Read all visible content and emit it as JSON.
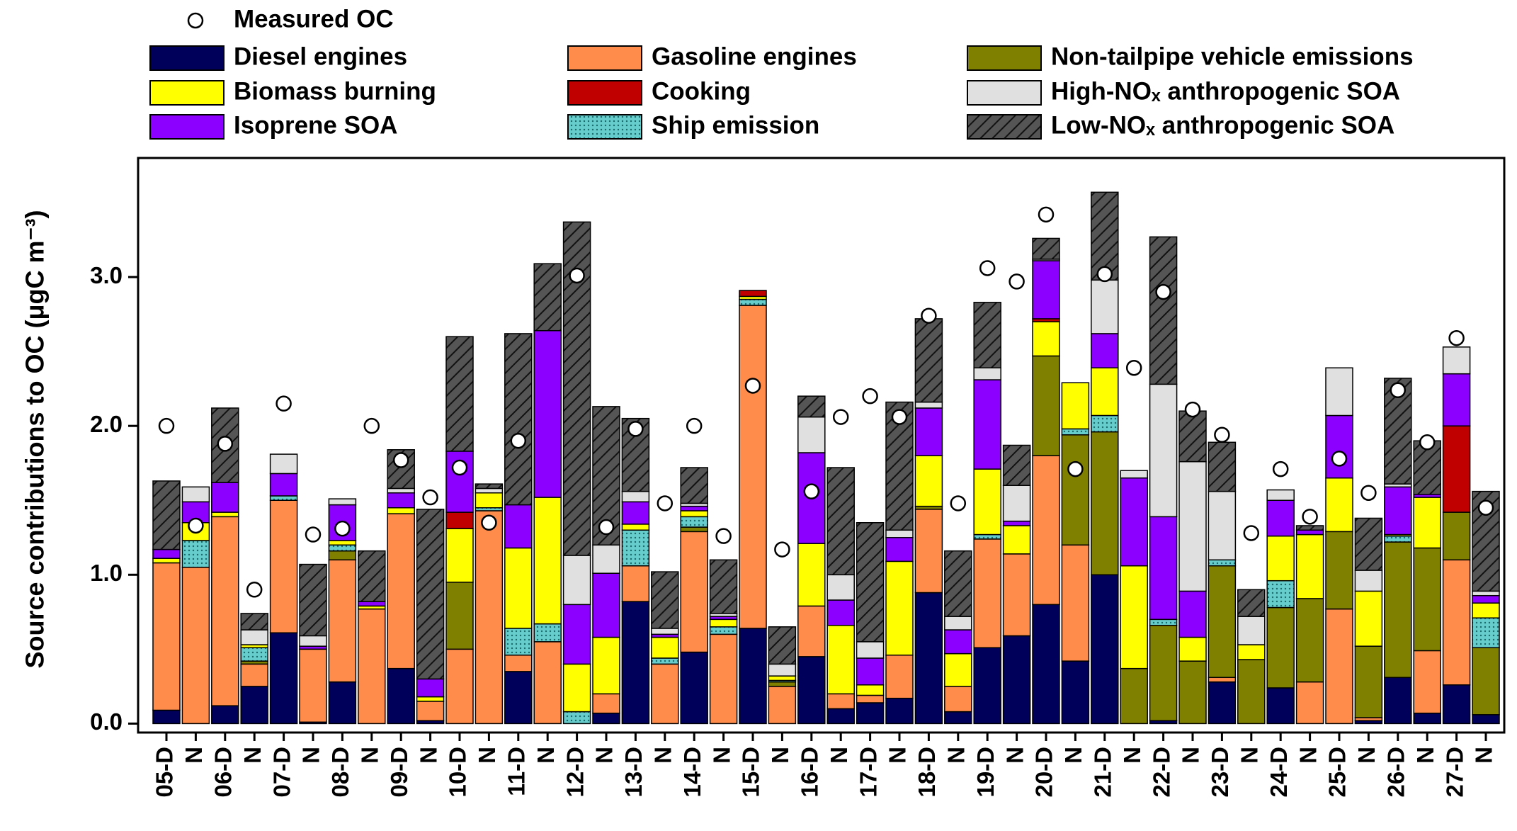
{
  "chart_data": {
    "type": "bar",
    "stacked": true,
    "ylabel": "Source contributions to OC (μgC m⁻³)",
    "ylim": [
      -0.06,
      3.8
    ],
    "yticks": [
      {
        "value": 0,
        "label": "0.0"
      },
      {
        "value": 1,
        "label": "1.0"
      },
      {
        "value": 2,
        "label": "2.0"
      },
      {
        "value": 3,
        "label": "3.0"
      }
    ],
    "categories": [
      "05-D",
      "N",
      "06-D",
      "N",
      "07-D",
      "N",
      "08-D",
      "N",
      "09-D",
      "N",
      "10-D",
      "N",
      "11-D",
      "N",
      "12-D",
      "N",
      "13-D",
      "N",
      "14-D",
      "N",
      "15-D",
      "N",
      "16-D",
      "N",
      "17-D",
      "N",
      "18-D",
      "N",
      "19-D",
      "N",
      "20-D",
      "N",
      "21-D",
      "N",
      "22-D",
      "N",
      "23-D",
      "N",
      "24-D",
      "N",
      "25-D",
      "N",
      "26-D",
      "N",
      "27-D",
      "N"
    ],
    "series": [
      {
        "name": "Diesel engines",
        "color": "#00005a",
        "values": [
          0.09,
          0,
          0.12,
          0.25,
          0.61,
          0.01,
          0.28,
          0,
          0.37,
          0.02,
          0,
          0,
          0.35,
          0,
          0,
          0.07,
          0.82,
          0,
          0.48,
          0,
          0.64,
          0,
          0.45,
          0.1,
          0.14,
          0.17,
          0.88,
          0.08,
          0.51,
          0.59,
          0.8,
          0.42,
          1.0,
          0,
          0.02,
          0,
          0.28,
          0,
          0.24,
          0,
          0,
          0.02,
          0.31,
          0.07,
          0.26,
          0.06
        ]
      },
      {
        "name": "Gasoline engines",
        "color": "#ff8c4a",
        "values": [
          0.99,
          1.05,
          1.27,
          0.15,
          0.89,
          0.49,
          0.82,
          0.77,
          1.04,
          0.13,
          0.5,
          1.43,
          0.11,
          0.55,
          0,
          0.13,
          0.24,
          0.4,
          0.81,
          0.6,
          2.17,
          0.25,
          0.34,
          0.1,
          0.05,
          0.29,
          0.56,
          0.17,
          0.73,
          0.55,
          1.0,
          0.78,
          0,
          0,
          0,
          0,
          0.03,
          0,
          0,
          0.28,
          0.77,
          0.02,
          0,
          0.42,
          0.84,
          0
        ]
      },
      {
        "name": "Non-tailpipe vehicle emissions",
        "color": "#808000",
        "values": [
          0,
          0,
          0,
          0.02,
          0,
          0,
          0.06,
          0,
          0,
          0,
          0.45,
          0,
          0,
          0,
          0,
          0,
          0,
          0,
          0.03,
          0,
          0,
          0.03,
          0,
          0,
          0,
          0,
          0.02,
          0,
          0,
          0,
          0.67,
          0.74,
          0.96,
          0.37,
          0.64,
          0.42,
          0.75,
          0.43,
          0.54,
          0.56,
          0.52,
          0.48,
          0.91,
          0.69,
          0.32,
          0.45
        ]
      },
      {
        "name": "Ship emission",
        "color": "#66cccc",
        "pattern": "dots",
        "values": [
          0,
          0.18,
          0,
          0.09,
          0.03,
          0,
          0.04,
          0,
          0,
          0,
          0,
          0.02,
          0.18,
          0.12,
          0.08,
          0,
          0.24,
          0.04,
          0.07,
          0.05,
          0.04,
          0.01,
          0,
          0,
          0,
          0,
          0,
          0,
          0.03,
          0,
          0,
          0.04,
          0.11,
          0,
          0.04,
          0,
          0.04,
          0,
          0.18,
          0,
          0,
          0,
          0.04,
          0,
          0,
          0.2
        ]
      },
      {
        "name": "Biomass burning",
        "color": "#ffff00",
        "values": [
          0.03,
          0.12,
          0.03,
          0.02,
          0,
          0,
          0.03,
          0.02,
          0.04,
          0.03,
          0.36,
          0.1,
          0.54,
          0.85,
          0.32,
          0.38,
          0.04,
          0.14,
          0.04,
          0.05,
          0.02,
          0.03,
          0.42,
          0.46,
          0.07,
          0.63,
          0.34,
          0.22,
          0.44,
          0.19,
          0.23,
          0.31,
          0.32,
          0.69,
          0,
          0.16,
          0,
          0.1,
          0.3,
          0.43,
          0.36,
          0.37,
          0.01,
          0.34,
          0,
          0.1
        ]
      },
      {
        "name": "Cooking",
        "color": "#c00000",
        "values": [
          0,
          0,
          0,
          0,
          0,
          0,
          0,
          0,
          0,
          0,
          0.11,
          0,
          0,
          0,
          0,
          0,
          0,
          0,
          0,
          0,
          0.04,
          0,
          0,
          0,
          0,
          0,
          0,
          0,
          0,
          0,
          0.02,
          0,
          0,
          0,
          0,
          0,
          0,
          0,
          0,
          0,
          0,
          0,
          0,
          0,
          0.58,
          0
        ]
      },
      {
        "name": "Isoprene SOA",
        "color": "#8b00ff",
        "values": [
          0.06,
          0.14,
          0.2,
          0,
          0.15,
          0.02,
          0.24,
          0.03,
          0.1,
          0.12,
          0.41,
          0,
          0.29,
          1.12,
          0.4,
          0.43,
          0.15,
          0.02,
          0.03,
          0.02,
          0,
          0,
          0.61,
          0.17,
          0.18,
          0.16,
          0.32,
          0.16,
          0.6,
          0.03,
          0.39,
          0,
          0.23,
          0.59,
          0.69,
          0.31,
          0,
          0,
          0.24,
          0.03,
          0.42,
          0,
          0.32,
          0.02,
          0.35,
          0.05
        ]
      },
      {
        "name": "High-NOₓ anthropogenic SOA",
        "color": "#e0e0e0",
        "values": [
          0,
          0.1,
          0,
          0.1,
          0.13,
          0.07,
          0.04,
          0,
          0.03,
          0,
          0,
          0.03,
          0,
          0,
          0.33,
          0.19,
          0.07,
          0.04,
          0.02,
          0.02,
          0,
          0.08,
          0.24,
          0.17,
          0.11,
          0.05,
          0.04,
          0.09,
          0.08,
          0.24,
          0.01,
          0,
          0.36,
          0.05,
          0.89,
          0.87,
          0.46,
          0.19,
          0.07,
          0,
          0.32,
          0.14,
          0.02,
          0,
          0.18,
          0.03
        ]
      },
      {
        "name": "Low-NOₓ anthropogenic SOA",
        "color": "#555555",
        "pattern": "hatch",
        "values": [
          0.46,
          0,
          0.5,
          0.11,
          0,
          0.48,
          0,
          0.34,
          0.26,
          1.14,
          0.77,
          0.03,
          1.15,
          0.45,
          2.24,
          0.93,
          0.49,
          0.38,
          0.24,
          0.36,
          0,
          0.25,
          0.14,
          0.72,
          0.8,
          0.86,
          0.56,
          0.44,
          0.44,
          0.27,
          0.14,
          0,
          0.59,
          0,
          0.99,
          0.34,
          0.33,
          0.18,
          0,
          0.03,
          0,
          0.35,
          0.71,
          0.36,
          0,
          0.67
        ]
      }
    ],
    "markers": {
      "name": "Measured OC",
      "values": [
        2.0,
        1.33,
        1.88,
        0.9,
        2.15,
        1.27,
        1.31,
        2.0,
        1.77,
        1.52,
        1.72,
        1.35,
        1.9,
        null,
        3.01,
        1.32,
        1.98,
        1.48,
        2.0,
        1.26,
        2.27,
        1.17,
        1.56,
        2.06,
        2.2,
        2.06,
        2.74,
        1.48,
        3.06,
        2.97,
        3.42,
        1.71,
        3.02,
        2.39,
        2.9,
        2.11,
        1.94,
        1.28,
        1.71,
        1.39,
        1.78,
        1.55,
        2.24,
        1.89,
        2.59,
        1.45
      ]
    }
  }
}
